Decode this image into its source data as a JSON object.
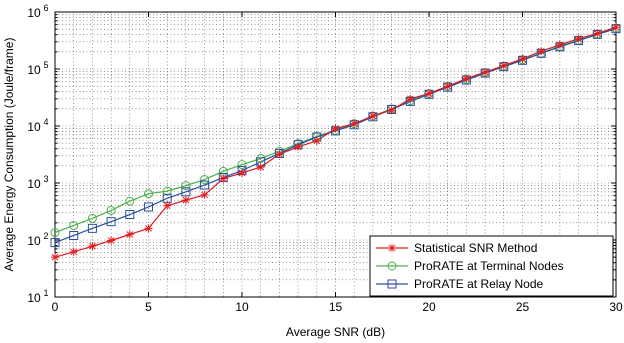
{
  "chart_data": {
    "type": "line",
    "xlabel": "Average SNR (dB)",
    "ylabel": "Average Energy Consumption (Joule/frame)",
    "xlim": [
      0,
      30
    ],
    "ylim_exponents": [
      1,
      6
    ],
    "y_scale": "log",
    "x_ticks": [
      0,
      5,
      10,
      15,
      20,
      25,
      30
    ],
    "y_tick_base": "10",
    "y_tick_exponents": [
      "1",
      "2",
      "3",
      "4",
      "5",
      "6"
    ],
    "grid": true,
    "legend_position": "bottom-right",
    "x": [
      0,
      1,
      2,
      3,
      4,
      5,
      6,
      7,
      8,
      9,
      10,
      11,
      12,
      13,
      14,
      15,
      16,
      17,
      18,
      19,
      20,
      21,
      22,
      23,
      24,
      25,
      26,
      27,
      28,
      29,
      30
    ],
    "series": [
      {
        "name": "Statistical SNR Method",
        "color": "#e41a1c",
        "marker": "star",
        "values": [
          50,
          62,
          78,
          98,
          125,
          160,
          400,
          500,
          620,
          1200,
          1500,
          1900,
          3200,
          4300,
          5500,
          9000,
          11000,
          15000,
          19000,
          30000,
          37000,
          50000,
          68000,
          88000,
          115000,
          150000,
          205000,
          265000,
          340000,
          420000,
          540000
        ]
      },
      {
        "name": "ProRATE at Terminal Nodes",
        "color": "#4daf4a",
        "marker": "circle",
        "values": [
          135,
          180,
          240,
          330,
          480,
          650,
          720,
          900,
          1150,
          1600,
          2100,
          2700,
          3600,
          4900,
          6600,
          8400,
          11000,
          15000,
          20000,
          28000,
          37000,
          50000,
          66000,
          87000,
          112000,
          145000,
          190000,
          250000,
          320000,
          410000,
          520000
        ]
      },
      {
        "name": "ProRATE at Relay Node",
        "color": "#2c4fa0",
        "marker": "square",
        "values": [
          90,
          120,
          160,
          210,
          280,
          380,
          540,
          700,
          920,
          1250,
          1650,
          2350,
          3300,
          4700,
          6400,
          8200,
          10500,
          14500,
          19500,
          27000,
          36000,
          48000,
          64000,
          85000,
          110000,
          142000,
          188000,
          245000,
          315000,
          405000,
          510000
        ]
      }
    ]
  }
}
